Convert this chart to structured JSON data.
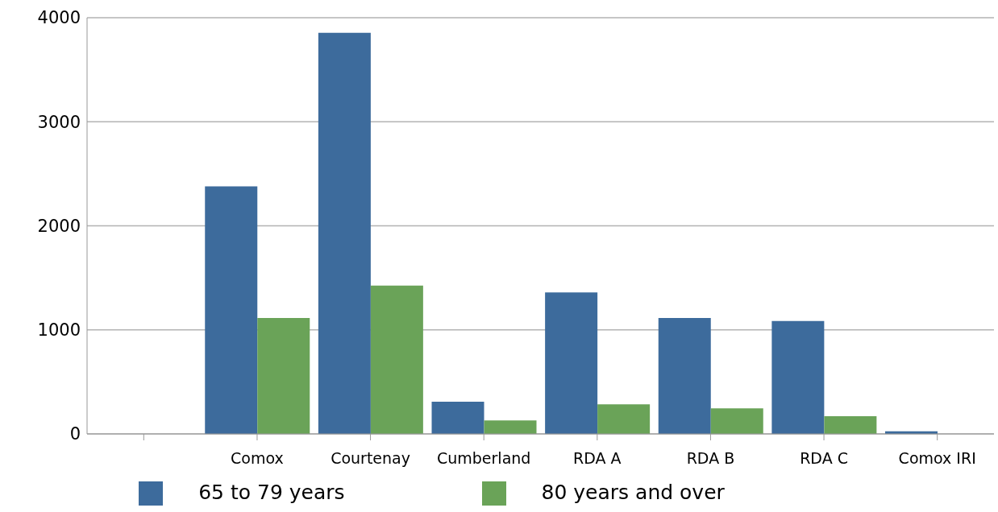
{
  "chart_data": {
    "type": "bar",
    "categories": [
      null,
      "Comox",
      "Courtenay",
      "Cumberland",
      "RDA A",
      "RDA B",
      "RDA C",
      "Comox IRI"
    ],
    "series": [
      {
        "name": "65 to 79 years",
        "color": "#3d6b9c",
        "values": [
          null,
          2380,
          3855,
          310,
          1360,
          1115,
          1085,
          25
        ]
      },
      {
        "name": "80 years and over",
        "color": "#6aa358",
        "values": [
          null,
          1115,
          1425,
          130,
          285,
          245,
          170,
          null
        ]
      }
    ],
    "ylim": [
      0,
      4000
    ],
    "yticks": [
      0,
      1000,
      2000,
      3000,
      4000
    ],
    "grid": "y",
    "legend": "bottom"
  }
}
